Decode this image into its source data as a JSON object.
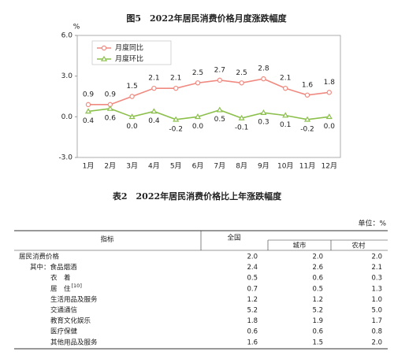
{
  "chart_data": {
    "type": "line",
    "title": "图5　2022年居民消费价格月度涨跌幅度",
    "y_unit": "%",
    "categories": [
      "1月",
      "2月",
      "3月",
      "4月",
      "5月",
      "6月",
      "7月",
      "8月",
      "9月",
      "10月",
      "11月",
      "12月"
    ],
    "series": [
      {
        "name": "月度同比",
        "color": "#f08a80",
        "values": [
          0.9,
          0.9,
          1.5,
          2.1,
          2.1,
          2.5,
          2.7,
          2.5,
          2.8,
          2.1,
          1.6,
          1.8
        ],
        "value_labels": [
          "0.9",
          "0.9",
          "1.5",
          "2.1",
          "2.1",
          "2.5",
          "2.7",
          "2.5",
          "2.8",
          "2.1",
          "1.6",
          "1.8"
        ]
      },
      {
        "name": "月度环比",
        "color": "#8cc04c",
        "values": [
          0.4,
          0.6,
          0.0,
          0.4,
          -0.2,
          0.0,
          0.5,
          -0.1,
          0.3,
          0.1,
          -0.2,
          0.0
        ],
        "value_labels": [
          "0.4",
          "0.6",
          "0.0",
          "0.4",
          "-0.2",
          "0.0",
          "0.5",
          "-0.1",
          "0.3",
          "0.1",
          "-0.2",
          "0.0"
        ]
      }
    ],
    "ylim": [
      -3,
      6
    ],
    "yticks": [
      {
        "value": -3,
        "label": "-3.0"
      },
      {
        "value": 0,
        "label": "0.0"
      },
      {
        "value": 3,
        "label": "3.0"
      },
      {
        "value": 6,
        "label": "6.0"
      }
    ],
    "grid": false,
    "legend": "upper left"
  },
  "table": {
    "title": "表2　2022年居民消费价格比上年涨跌幅度",
    "unit": "单位：%",
    "header": [
      "指标",
      "全国",
      "城市",
      "农村"
    ],
    "rows": [
      {
        "label": "居民消费价格",
        "values": [
          "2.0",
          "2.0",
          "2.0"
        ]
      },
      {
        "label": "其中：食品烟酒",
        "values": [
          "2.4",
          "2.6",
          "2.1"
        ]
      },
      {
        "label": "衣　着",
        "values": [
          "0.5",
          "0.6",
          "0.3"
        ]
      },
      {
        "label": "居　住",
        "ref": "[10]",
        "values": [
          "0.7",
          "0.5",
          "1.3"
        ]
      },
      {
        "label": "生活用品及服务",
        "values": [
          "1.2",
          "1.2",
          "1.0"
        ]
      },
      {
        "label": "交通通信",
        "values": [
          "5.2",
          "5.2",
          "5.0"
        ]
      },
      {
        "label": "教育文化娱乐",
        "values": [
          "1.8",
          "1.9",
          "1.7"
        ]
      },
      {
        "label": "医疗保健",
        "values": [
          "0.6",
          "0.6",
          "0.8"
        ]
      },
      {
        "label": "其他用品及服务",
        "values": [
          "1.6",
          "1.5",
          "2.0"
        ]
      }
    ]
  }
}
